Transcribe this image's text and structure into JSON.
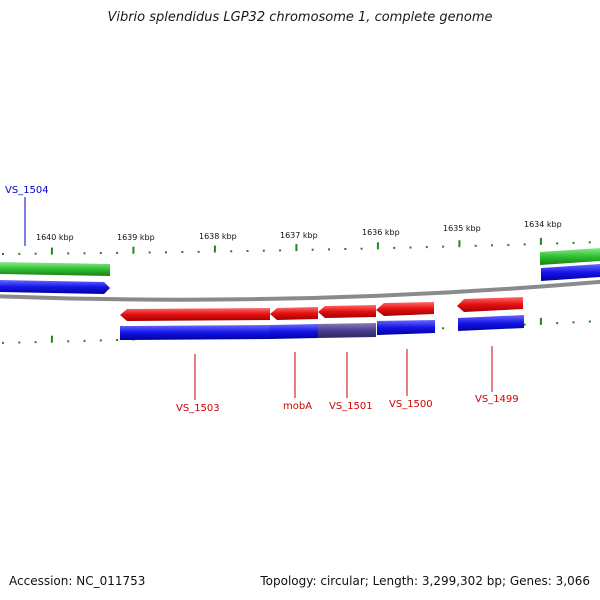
{
  "title": "Vibrio splendidus LGP32 chromosome 1, complete genome",
  "footer": {
    "accession": "Accession: NC_011753",
    "summary": "Topology: circular; Length: 3,299,302 bp; Genes: 3,066"
  },
  "ruler": {
    "ticks": [
      "1640 kbp",
      "1639 kbp",
      "1638 kbp",
      "1637 kbp",
      "1636 kbp",
      "1635 kbp",
      "1634 kbp"
    ]
  },
  "colors": {
    "forward_gene": "#e01010",
    "cds_blue": "#1010e0",
    "green_track": "#30c030",
    "backbone": "#888888",
    "tick": "#1a8a1a",
    "label_red": "#cc0000",
    "label_blue": "#0000cc"
  },
  "genes": [
    {
      "label": "VS_1504",
      "color": "blue"
    },
    {
      "label": "VS_1503",
      "color": "red"
    },
    {
      "label": "mobA",
      "color": "red"
    },
    {
      "label": "VS_1501",
      "color": "red"
    },
    {
      "label": "VS_1500",
      "color": "red"
    },
    {
      "label": "VS_1499",
      "color": "red"
    }
  ]
}
